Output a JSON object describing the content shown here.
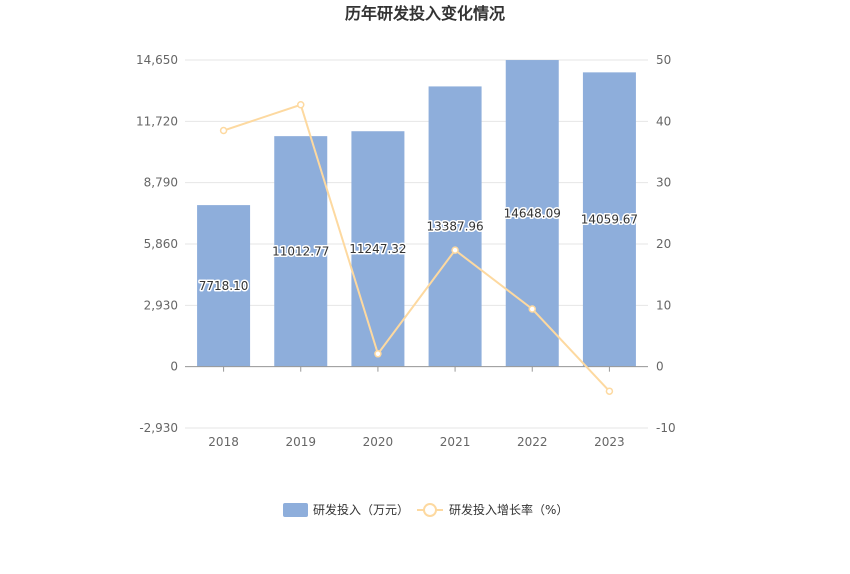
{
  "chart_data": {
    "type": "bar",
    "title": "历年研发投入变化情况",
    "categories": [
      "2018",
      "2019",
      "2020",
      "2021",
      "2022",
      "2023"
    ],
    "series": [
      {
        "name": "研发投入（万元）",
        "type": "bar",
        "axis": "left",
        "values": [
          7718.1,
          11012.77,
          11247.32,
          13387.96,
          14648.09,
          14059.67
        ],
        "labels": [
          "7718.10",
          "11012.77",
          "11247.32",
          "13387.96",
          "14648.09",
          "14059.67"
        ]
      },
      {
        "name": "研发投入增长率（%）",
        "type": "line",
        "axis": "right",
        "values": [
          38.5,
          42.7,
          2.1,
          19.0,
          9.4,
          -4.0
        ]
      }
    ],
    "y_left": {
      "min": -2930,
      "max": 14650,
      "ticks": [
        "-2,930",
        "0",
        "2,930",
        "5,860",
        "8,790",
        "11,720",
        "14,650"
      ]
    },
    "y_right": {
      "min": -10,
      "max": 50,
      "ticks": [
        "-10",
        "0",
        "10",
        "20",
        "30",
        "40",
        "50"
      ]
    },
    "grid": true,
    "legend_position": "bottom-center",
    "colors": {
      "bar": "#8eaedb",
      "line": "#fdd9a0",
      "grid": "#e6e6e6",
      "axis": "#999999"
    }
  }
}
